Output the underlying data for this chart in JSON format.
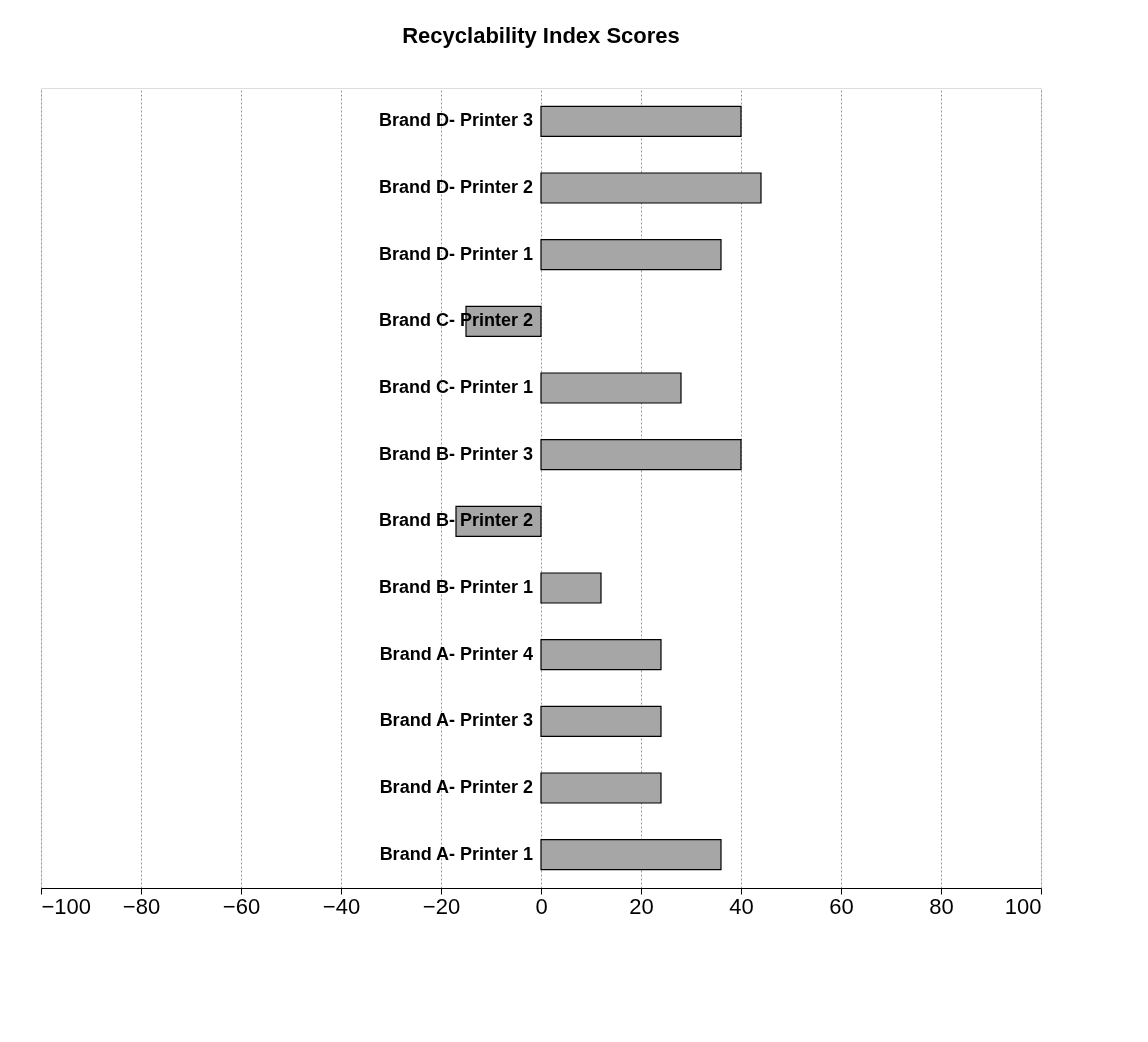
{
  "chart_data": {
    "type": "bar",
    "orientation": "horizontal",
    "title": "Recyclability Index Scores",
    "categories": [
      "Brand D- Printer 3",
      "Brand D- Printer 2",
      "Brand D- Printer 1",
      "Brand C- Printer 2",
      "Brand C- Printer 1",
      "Brand B- Printer 3",
      "Brand B- Printer 2",
      "Brand B- Printer 1",
      "Brand A- Printer 4",
      "Brand A- Printer 3",
      "Brand A- Printer 2",
      "Brand A- Printer 1"
    ],
    "values": [
      40,
      44,
      36,
      -15,
      28,
      40,
      -17,
      12,
      24,
      24,
      24,
      36
    ],
    "color": "#a6a6a6",
    "xlim": [
      -100,
      100
    ],
    "xticks": [
      -100,
      -80,
      -60,
      -40,
      -20,
      0,
      20,
      40,
      60,
      80,
      100
    ],
    "grid": "x"
  }
}
